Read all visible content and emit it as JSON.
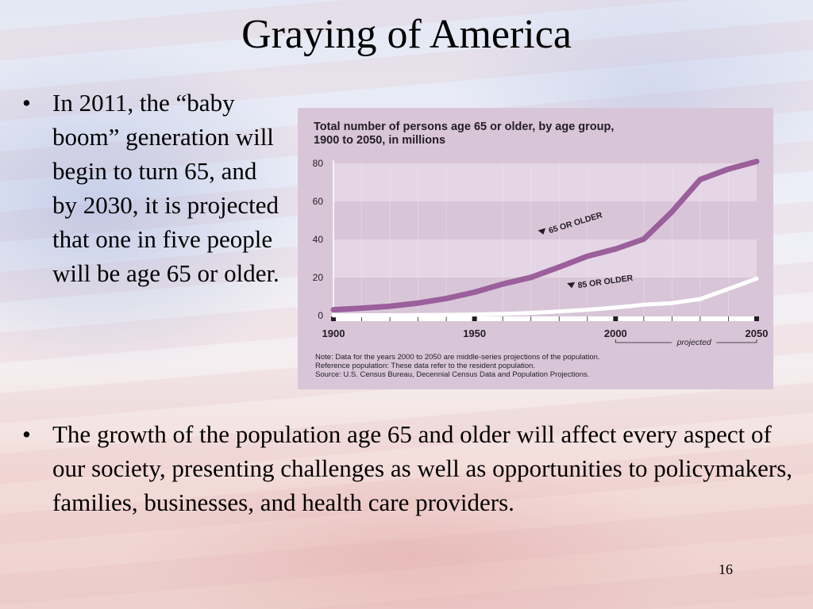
{
  "slide": {
    "title": "Graying of America",
    "bullets": [
      "In 2011, the “baby boom” generation will begin to turn 65, and by 2030, it is projected that one in five people will be age 65 or older.",
      "The growth of the population age 65 and older will affect every aspect of our society, presenting challenges as well as opportunities to policymakers, families, businesses, and health care providers."
    ],
    "bullet_symbol": "•",
    "page_number": "16"
  },
  "chart_data": {
    "type": "line",
    "title": "Total number of persons age 65 or older, by age group, 1900 to 2050, in millions",
    "title_lines": [
      "Total number of persons age 65 or older, by age group,",
      "1900 to 2050, in millions"
    ],
    "xlabel": "",
    "ylabel": "",
    "xlim": [
      1900,
      2050
    ],
    "ylim": [
      0,
      80
    ],
    "x_ticks": [
      1900,
      1950,
      2000,
      2050
    ],
    "y_ticks": [
      0,
      20,
      40,
      60,
      80
    ],
    "grid": "horizontal bands",
    "projected_label": "projected",
    "projected_range": [
      2000,
      2050
    ],
    "series": [
      {
        "name": "65 OR OLDER",
        "color": "#9b5f9b",
        "x": [
          1900,
          1910,
          1920,
          1930,
          1940,
          1950,
          1960,
          1970,
          1980,
          1990,
          2000,
          2010,
          2020,
          2030,
          2040,
          2050
        ],
        "y": [
          3.1,
          3.9,
          4.9,
          6.6,
          9.0,
          12.3,
          16.6,
          20.1,
          25.5,
          31.2,
          35.0,
          40.2,
          54.6,
          71.5,
          77.0,
          81.0
        ]
      },
      {
        "name": "85 OR OLDER",
        "color": "#ffffff",
        "x": [
          1900,
          1910,
          1920,
          1930,
          1940,
          1950,
          1960,
          1970,
          1980,
          1990,
          2000,
          2010,
          2020,
          2030,
          2040,
          2050
        ],
        "y": [
          0.1,
          0.2,
          0.2,
          0.3,
          0.4,
          0.6,
          0.9,
          1.4,
          2.2,
          3.1,
          4.2,
          5.7,
          6.6,
          8.7,
          14.0,
          19.4
        ]
      }
    ],
    "notes": [
      "Note: Data for the years 2000 to 2050 are middle-series projections of the population.",
      "Reference population: These data refer to the resident population.",
      "Source: U.S. Census Bureau, Decennial Census Data and Population Projections."
    ]
  }
}
